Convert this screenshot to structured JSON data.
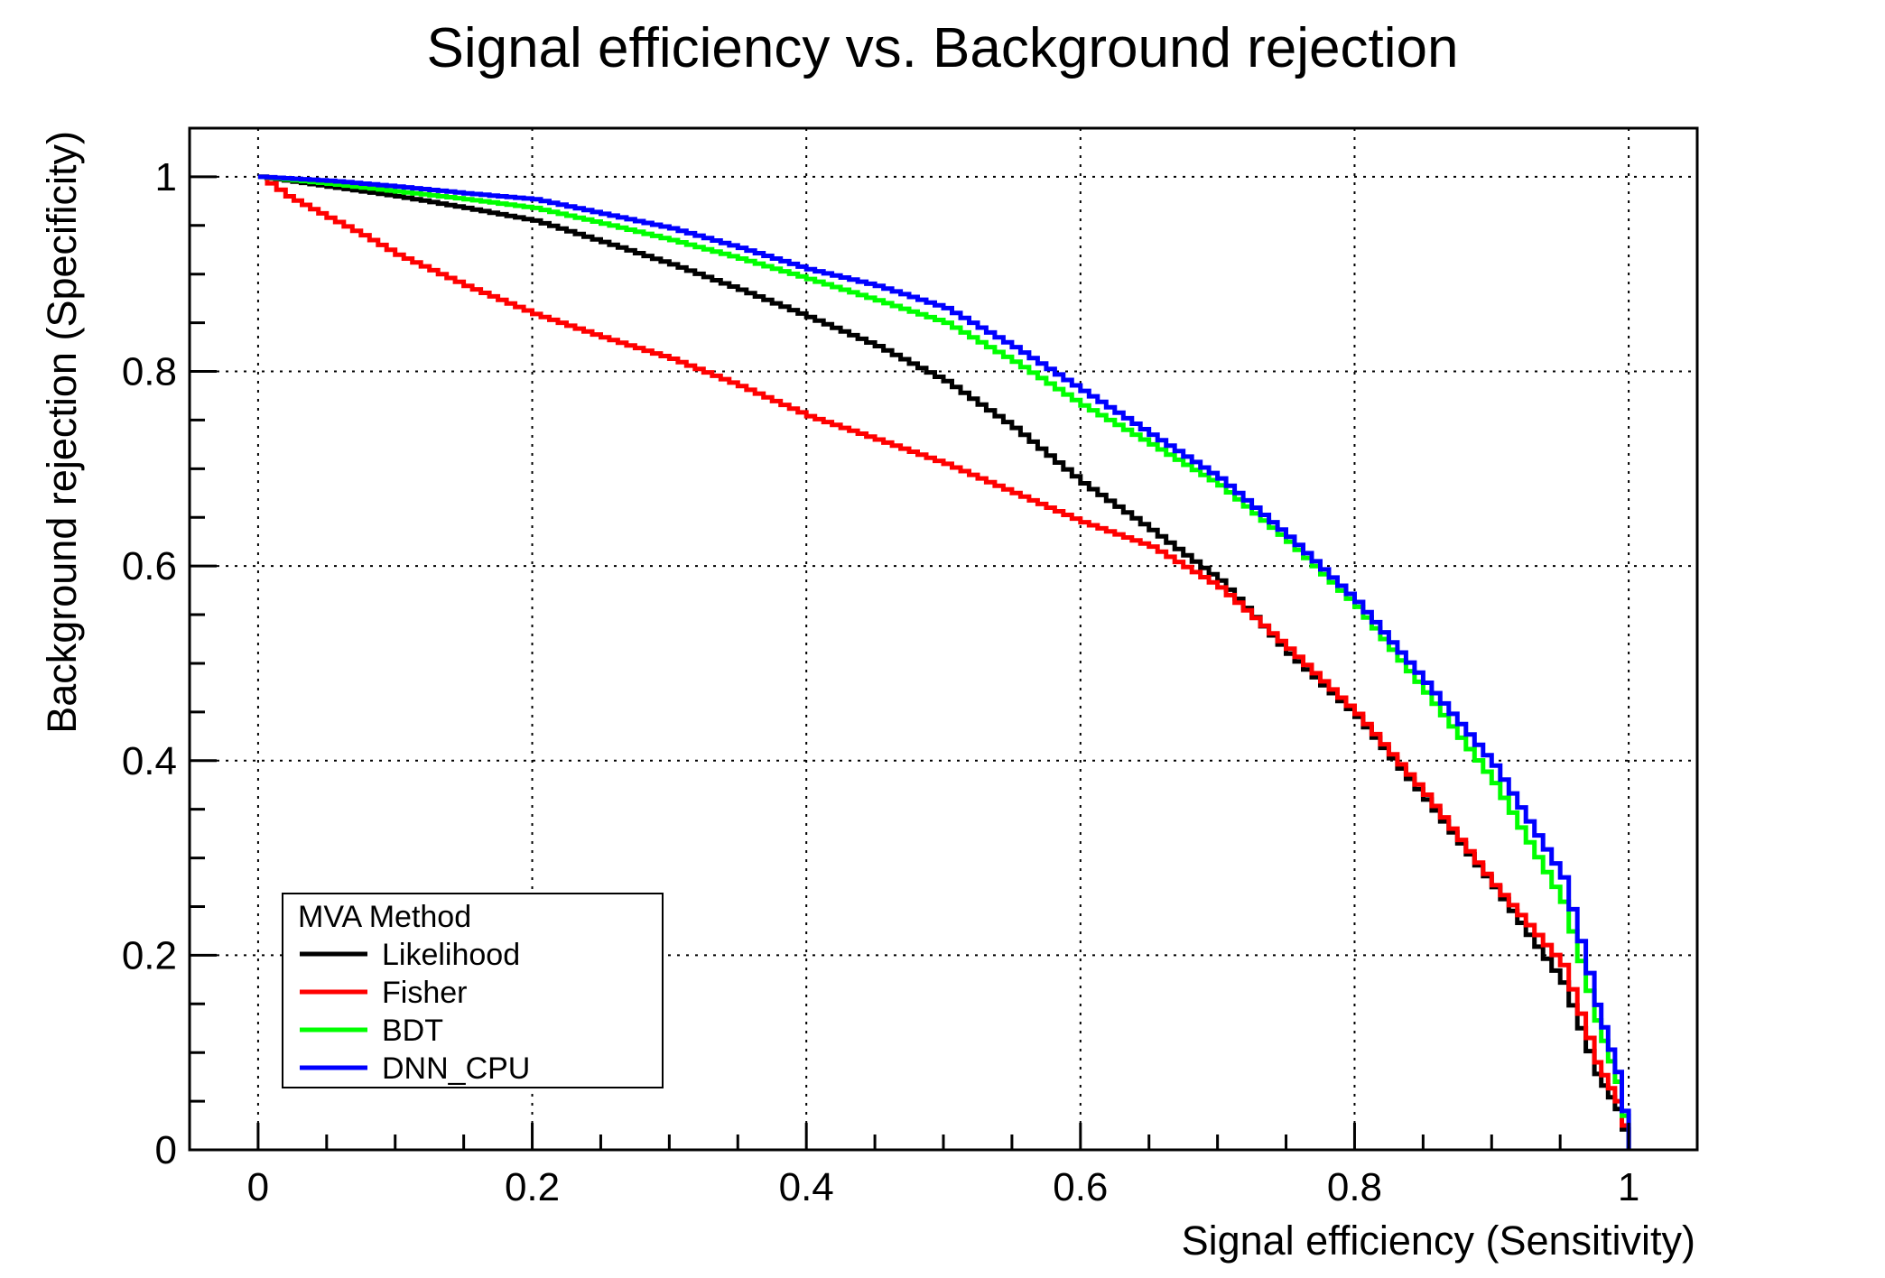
{
  "page": {
    "background": "#ffffff",
    "foreground": "#000000"
  },
  "title": "Signal efficiency vs. Background rejection",
  "axes": {
    "x_title": "Signal efficiency (Sensitivity)",
    "y_title": "Background rejection (Specificity)",
    "x_tick_labels": [
      "0",
      "0.2",
      "0.4",
      "0.6",
      "0.8",
      "1"
    ],
    "y_tick_labels": [
      "0",
      "0.2",
      "0.4",
      "0.6",
      "0.8",
      "1"
    ]
  },
  "legend": {
    "header": "MVA Method"
  },
  "chart_data": {
    "type": "line",
    "title": "Signal efficiency vs. Background rejection",
    "xlabel": "Signal efficiency (Sensitivity)",
    "ylabel": "Background rejection (Specificity)",
    "xlim": [
      -0.05,
      1.05
    ],
    "ylim": [
      0,
      1.05
    ],
    "x_major_ticks": [
      0,
      0.2,
      0.4,
      0.6,
      0.8,
      1
    ],
    "y_major_ticks": [
      0,
      0.2,
      0.4,
      0.6,
      0.8,
      1
    ],
    "minor_tick_step": 0.05,
    "grid": "dotted-at-major-ticks",
    "curve_style": "staircase",
    "legend_position": "bottom-left",
    "series": [
      {
        "name": "Likelihood",
        "color": "#000000",
        "x": [
          0,
          0.05,
          0.1,
          0.15,
          0.2,
          0.25,
          0.3,
          0.35,
          0.4,
          0.45,
          0.5,
          0.55,
          0.6,
          0.65,
          0.7,
          0.75,
          0.8,
          0.85,
          0.9,
          0.95,
          0.975,
          0.99,
          1
        ],
        "y": [
          1.0,
          0.99,
          0.98,
          0.968,
          0.955,
          0.933,
          0.91,
          0.884,
          0.856,
          0.826,
          0.79,
          0.742,
          0.685,
          0.637,
          0.585,
          0.51,
          0.445,
          0.36,
          0.27,
          0.172,
          0.078,
          0.042,
          0
        ]
      },
      {
        "name": "Fisher",
        "color": "#ff0000",
        "x": [
          0,
          0.02,
          0.05,
          0.075,
          0.1,
          0.15,
          0.2,
          0.25,
          0.3,
          0.35,
          0.4,
          0.45,
          0.5,
          0.55,
          0.6,
          0.65,
          0.7,
          0.75,
          0.8,
          0.85,
          0.9,
          0.95,
          0.975,
          0.99,
          1
        ],
        "y": [
          1.0,
          0.98,
          0.958,
          0.94,
          0.92,
          0.888,
          0.859,
          0.835,
          0.813,
          0.785,
          0.754,
          0.73,
          0.705,
          0.675,
          0.645,
          0.62,
          0.578,
          0.515,
          0.448,
          0.365,
          0.272,
          0.19,
          0.09,
          0.05,
          0
        ]
      },
      {
        "name": "BDT",
        "color": "#00ff00",
        "x": [
          0,
          0.05,
          0.1,
          0.15,
          0.2,
          0.25,
          0.3,
          0.35,
          0.4,
          0.45,
          0.5,
          0.55,
          0.6,
          0.65,
          0.7,
          0.75,
          0.8,
          0.85,
          0.9,
          0.95,
          0.975,
          0.99,
          1
        ],
        "y": [
          1.0,
          0.993,
          0.985,
          0.977,
          0.968,
          0.952,
          0.935,
          0.916,
          0.895,
          0.873,
          0.85,
          0.81,
          0.765,
          0.725,
          0.683,
          0.625,
          0.558,
          0.47,
          0.377,
          0.255,
          0.133,
          0.07,
          0
        ]
      },
      {
        "name": "DNN_CPU",
        "color": "#0000ff",
        "x": [
          0,
          0.05,
          0.1,
          0.15,
          0.2,
          0.25,
          0.3,
          0.35,
          0.4,
          0.45,
          0.5,
          0.55,
          0.6,
          0.65,
          0.7,
          0.75,
          0.8,
          0.85,
          0.9,
          0.95,
          0.975,
          0.99,
          1
        ],
        "y": [
          1.0,
          0.996,
          0.99,
          0.983,
          0.977,
          0.962,
          0.947,
          0.927,
          0.905,
          0.888,
          0.865,
          0.825,
          0.78,
          0.735,
          0.69,
          0.63,
          0.563,
          0.48,
          0.395,
          0.28,
          0.149,
          0.08,
          0
        ]
      }
    ]
  }
}
